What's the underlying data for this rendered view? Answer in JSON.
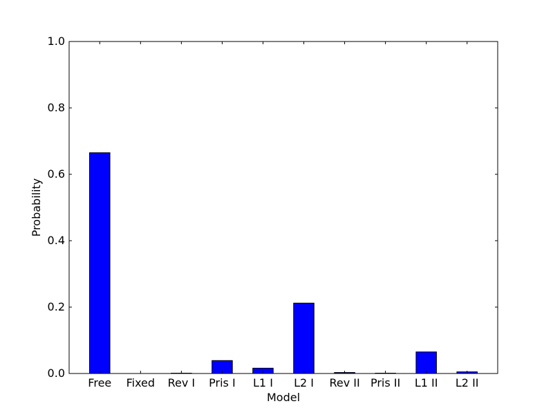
{
  "chart_data": {
    "type": "bar",
    "title": "",
    "xlabel": "Model",
    "ylabel": "Probability",
    "ylim": [
      0,
      1.0
    ],
    "yticks": [
      "0.0",
      "0.2",
      "0.4",
      "0.6",
      "0.8",
      "1.0"
    ],
    "categories": [
      "Free",
      "Fixed",
      "Rev I",
      "Pris I",
      "L1 I",
      "L2 I",
      "Rev II",
      "Pris II",
      "L1 II",
      "L2 II"
    ],
    "values": [
      0.665,
      0.0,
      0.001,
      0.039,
      0.016,
      0.212,
      0.003,
      0.001,
      0.065,
      0.005
    ],
    "bar_color": "#0000ff",
    "grid": false,
    "legend": "none"
  }
}
